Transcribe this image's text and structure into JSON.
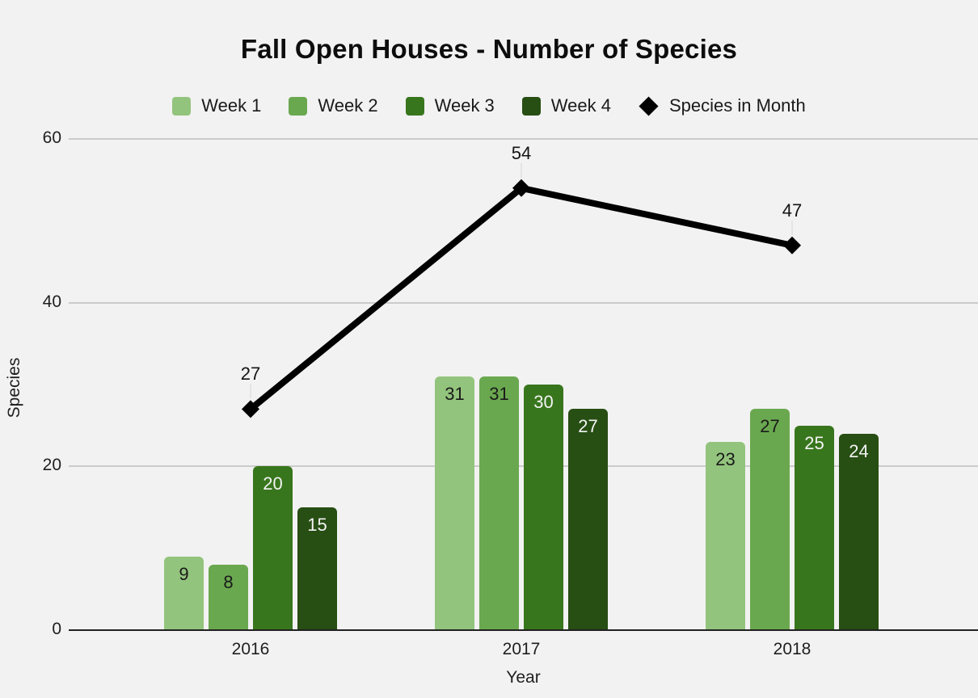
{
  "title": "Fall Open Houses - Number of Species",
  "chart_data": {
    "type": "combo-bar-line",
    "title": "Fall Open Houses - Number of Species",
    "xlabel": "Year",
    "ylabel": "Species",
    "categories": [
      "2016",
      "2017",
      "2018"
    ],
    "bar_series": [
      {
        "name": "Week 1",
        "color": "#93c47d",
        "label_color": "#1a1a1a",
        "values": [
          9,
          31,
          23
        ]
      },
      {
        "name": "Week 2",
        "color": "#6aa84f",
        "label_color": "#1a1a1a",
        "values": [
          8,
          31,
          27
        ]
      },
      {
        "name": "Week 3",
        "color": "#38761d",
        "label_color": "#f3f3f3",
        "values": [
          20,
          30,
          25
        ]
      },
      {
        "name": "Week 4",
        "color": "#274e13",
        "label_color": "#f3f3f3",
        "values": [
          15,
          27,
          24
        ]
      }
    ],
    "line_series": {
      "name": "Species in Month",
      "color": "#000000",
      "values": [
        27,
        54,
        47
      ],
      "marker": "diamond"
    },
    "yticks": [
      0,
      20,
      40,
      60
    ],
    "ylim": [
      0,
      60
    ],
    "grid": true,
    "legend_position": "top",
    "background_color": "#f2f2f2",
    "gridline_color": "#cbcbcb",
    "axis_line_color": "#212121"
  }
}
